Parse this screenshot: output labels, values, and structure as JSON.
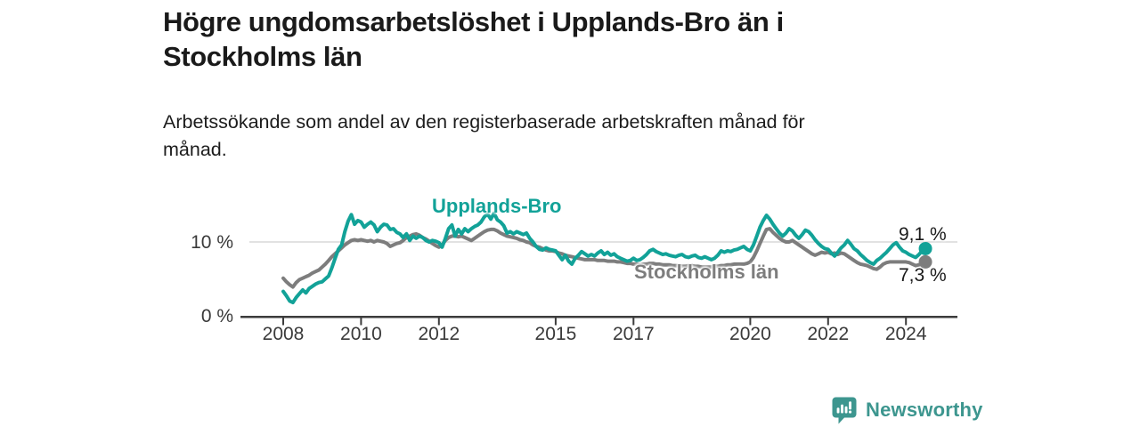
{
  "title": {
    "line1": "Högre ungdomsarbetslöshet i Upplands-Bro än i",
    "line2": "Stockholms län"
  },
  "subtitle": {
    "line1": "Arbetssökande som andel av den registerbaserade arbetskraften månad för",
    "line2": "månad."
  },
  "branding": {
    "name": "Newsworthy",
    "icon": "newsworthy-speech-bubble-bar-chart-icon",
    "color": "#3d968f"
  },
  "colors": {
    "background": "#ffffff",
    "title_text": "#1a1a1a",
    "subtitle_text": "#1c1c1c",
    "axis_line": "#3c3c3c",
    "axis_text": "#3a3a3a",
    "gridline": "#d9d9d9",
    "upplands_bro": "#12a298",
    "stockholms_lan": "#7d7d7d",
    "end_label_text": "#1a1a1a"
  },
  "chart_data": {
    "type": "line",
    "title": "Högre ungdomsarbetslöshet i Upplands-Bro än i Stockholms län",
    "subtitle": "Arbetssökande som andel av den registerbaserade arbetskraften månad för månad.",
    "x_start_year": 2008,
    "x_step": "1 month",
    "x_end": "mitten av 2024",
    "ylim": [
      0,
      15
    ],
    "grid": "horizontal line at 10% only",
    "legend_position": "inline labels on lines, value labels at line ends",
    "yticks": [
      {
        "value": 0,
        "label": "0 %"
      },
      {
        "value": 10,
        "label": "10 %"
      }
    ],
    "xticks": [
      {
        "value": 2008,
        "label": "2008"
      },
      {
        "value": 2010,
        "label": "2010"
      },
      {
        "value": 2012,
        "label": "2012"
      },
      {
        "value": 2015,
        "label": "2015"
      },
      {
        "value": 2017,
        "label": "2017"
      },
      {
        "value": 2020,
        "label": "2020"
      },
      {
        "value": 2022,
        "label": "2022"
      },
      {
        "value": 2024,
        "label": "2024"
      }
    ],
    "series": [
      {
        "name": "Upplands-Bro",
        "color": "#12a298",
        "end_label": "9,1 %",
        "end_value": 9.1,
        "values": [
          3.3,
          2.7,
          2.0,
          1.8,
          2.5,
          3.0,
          3.5,
          3.1,
          3.7,
          4.0,
          4.3,
          4.5,
          4.6,
          5.0,
          5.4,
          6.5,
          7.8,
          9.0,
          9.6,
          11.4,
          12.8,
          13.7,
          12.4,
          12.9,
          12.7,
          12.0,
          12.4,
          12.7,
          12.3,
          11.4,
          12.0,
          12.4,
          12.3,
          11.7,
          11.8,
          11.3,
          11.1,
          10.6,
          11.1,
          10.2,
          10.8,
          10.5,
          10.8,
          10.6,
          10.2,
          10.0,
          10.2,
          10.1,
          9.9,
          9.3,
          10.5,
          11.8,
          12.3,
          10.8,
          11.7,
          11.1,
          11.8,
          11.4,
          11.8,
          12.1,
          12.3,
          12.7,
          13.4,
          13.8,
          13.1,
          13.9,
          13.0,
          12.7,
          12.2,
          11.2,
          11.4,
          11.1,
          11.4,
          11.2,
          11.0,
          11.2,
          10.5,
          10.0,
          9.4,
          9.0,
          8.9,
          9.2,
          9.0,
          8.9,
          8.8,
          8.2,
          7.6,
          8.2,
          7.4,
          7.0,
          7.8,
          8.2,
          8.7,
          8.4,
          8.1,
          8.3,
          8.1,
          8.5,
          8.8,
          8.3,
          8.6,
          8.2,
          8.4,
          8.0,
          7.8,
          7.6,
          7.4,
          7.5,
          7.8,
          7.5,
          7.6,
          7.9,
          8.3,
          8.8,
          9.0,
          8.7,
          8.5,
          8.3,
          8.4,
          8.2,
          8.1,
          8.0,
          8.2,
          8.3,
          8.0,
          7.9,
          8.1,
          8.2,
          7.9,
          7.8,
          8.0,
          7.8,
          7.6,
          7.8,
          8.2,
          8.8,
          8.6,
          8.8,
          8.7,
          8.9,
          9.0,
          9.2,
          9.4,
          9.0,
          8.8,
          9.6,
          10.8,
          12.0,
          12.9,
          13.6,
          13.1,
          12.4,
          11.8,
          11.2,
          10.8,
          11.2,
          11.8,
          11.5,
          10.9,
          10.5,
          11.0,
          11.6,
          11.4,
          10.9,
          10.3,
          9.8,
          9.4,
          9.1,
          9.0,
          8.5,
          8.1,
          8.6,
          9.2,
          9.6,
          10.2,
          9.7,
          9.1,
          8.8,
          8.3,
          7.9,
          7.5,
          7.2,
          7.0,
          7.5,
          7.8,
          8.2,
          8.6,
          9.1,
          9.6,
          9.9,
          9.3,
          8.8,
          8.6,
          8.3,
          8.1,
          7.9,
          8.3,
          8.8,
          9.1
        ]
      },
      {
        "name": "Stockholms län",
        "color": "#7d7d7d",
        "end_label": "7,3 %",
        "end_value": 7.3,
        "values": [
          5.1,
          4.6,
          4.2,
          3.9,
          4.5,
          4.9,
          5.1,
          5.3,
          5.5,
          5.8,
          6.0,
          6.2,
          6.6,
          7.0,
          7.5,
          8.0,
          8.4,
          8.8,
          9.2,
          9.6,
          9.9,
          10.2,
          10.3,
          10.2,
          10.3,
          10.2,
          10.1,
          10.2,
          10.0,
          10.2,
          10.1,
          10.0,
          9.8,
          9.4,
          9.6,
          9.8,
          9.9,
          10.2,
          10.6,
          10.8,
          11.0,
          11.1,
          10.9,
          10.6,
          10.4,
          10.1,
          9.8,
          9.5,
          9.3,
          9.6,
          10.2,
          10.6,
          10.8,
          10.8,
          10.7,
          10.8,
          10.6,
          10.4,
          10.2,
          10.5,
          10.8,
          11.1,
          11.4,
          11.6,
          11.7,
          11.7,
          11.5,
          11.2,
          11.0,
          10.8,
          10.7,
          10.6,
          10.5,
          10.3,
          10.2,
          10.0,
          9.9,
          9.6,
          9.4,
          9.3,
          9.1,
          8.9,
          8.8,
          8.8,
          8.7,
          8.5,
          8.4,
          8.2,
          8.1,
          8.0,
          7.9,
          7.8,
          7.7,
          7.6,
          7.6,
          7.6,
          7.6,
          7.5,
          7.5,
          7.5,
          7.4,
          7.4,
          7.4,
          7.3,
          7.3,
          7.2,
          7.1,
          7.1,
          7.0,
          7.0,
          6.9,
          7.0,
          7.0,
          7.1,
          7.1,
          7.0,
          7.0,
          6.9,
          6.9,
          6.9,
          6.8,
          6.8,
          6.8,
          6.7,
          6.7,
          6.8,
          6.8,
          6.7,
          6.7,
          6.6,
          6.6,
          6.6,
          6.6,
          6.7,
          6.7,
          6.8,
          6.8,
          6.9,
          6.9,
          7.0,
          7.0,
          7.0,
          7.0,
          7.1,
          7.3,
          7.9,
          8.8,
          9.8,
          10.8,
          11.7,
          11.8,
          11.3,
          10.9,
          10.5,
          10.2,
          10.0,
          10.0,
          10.2,
          9.9,
          9.6,
          9.3,
          9.0,
          8.7,
          8.4,
          8.2,
          8.4,
          8.6,
          8.5,
          8.6,
          8.4,
          8.5,
          8.3,
          8.5,
          8.4,
          8.1,
          7.8,
          7.5,
          7.2,
          7.0,
          6.9,
          6.8,
          6.6,
          6.4,
          6.3,
          6.6,
          7.0,
          7.2,
          7.3,
          7.3,
          7.3,
          7.3,
          7.3,
          7.3,
          7.2,
          7.0,
          6.8,
          6.9,
          7.1,
          7.3
        ]
      }
    ]
  }
}
